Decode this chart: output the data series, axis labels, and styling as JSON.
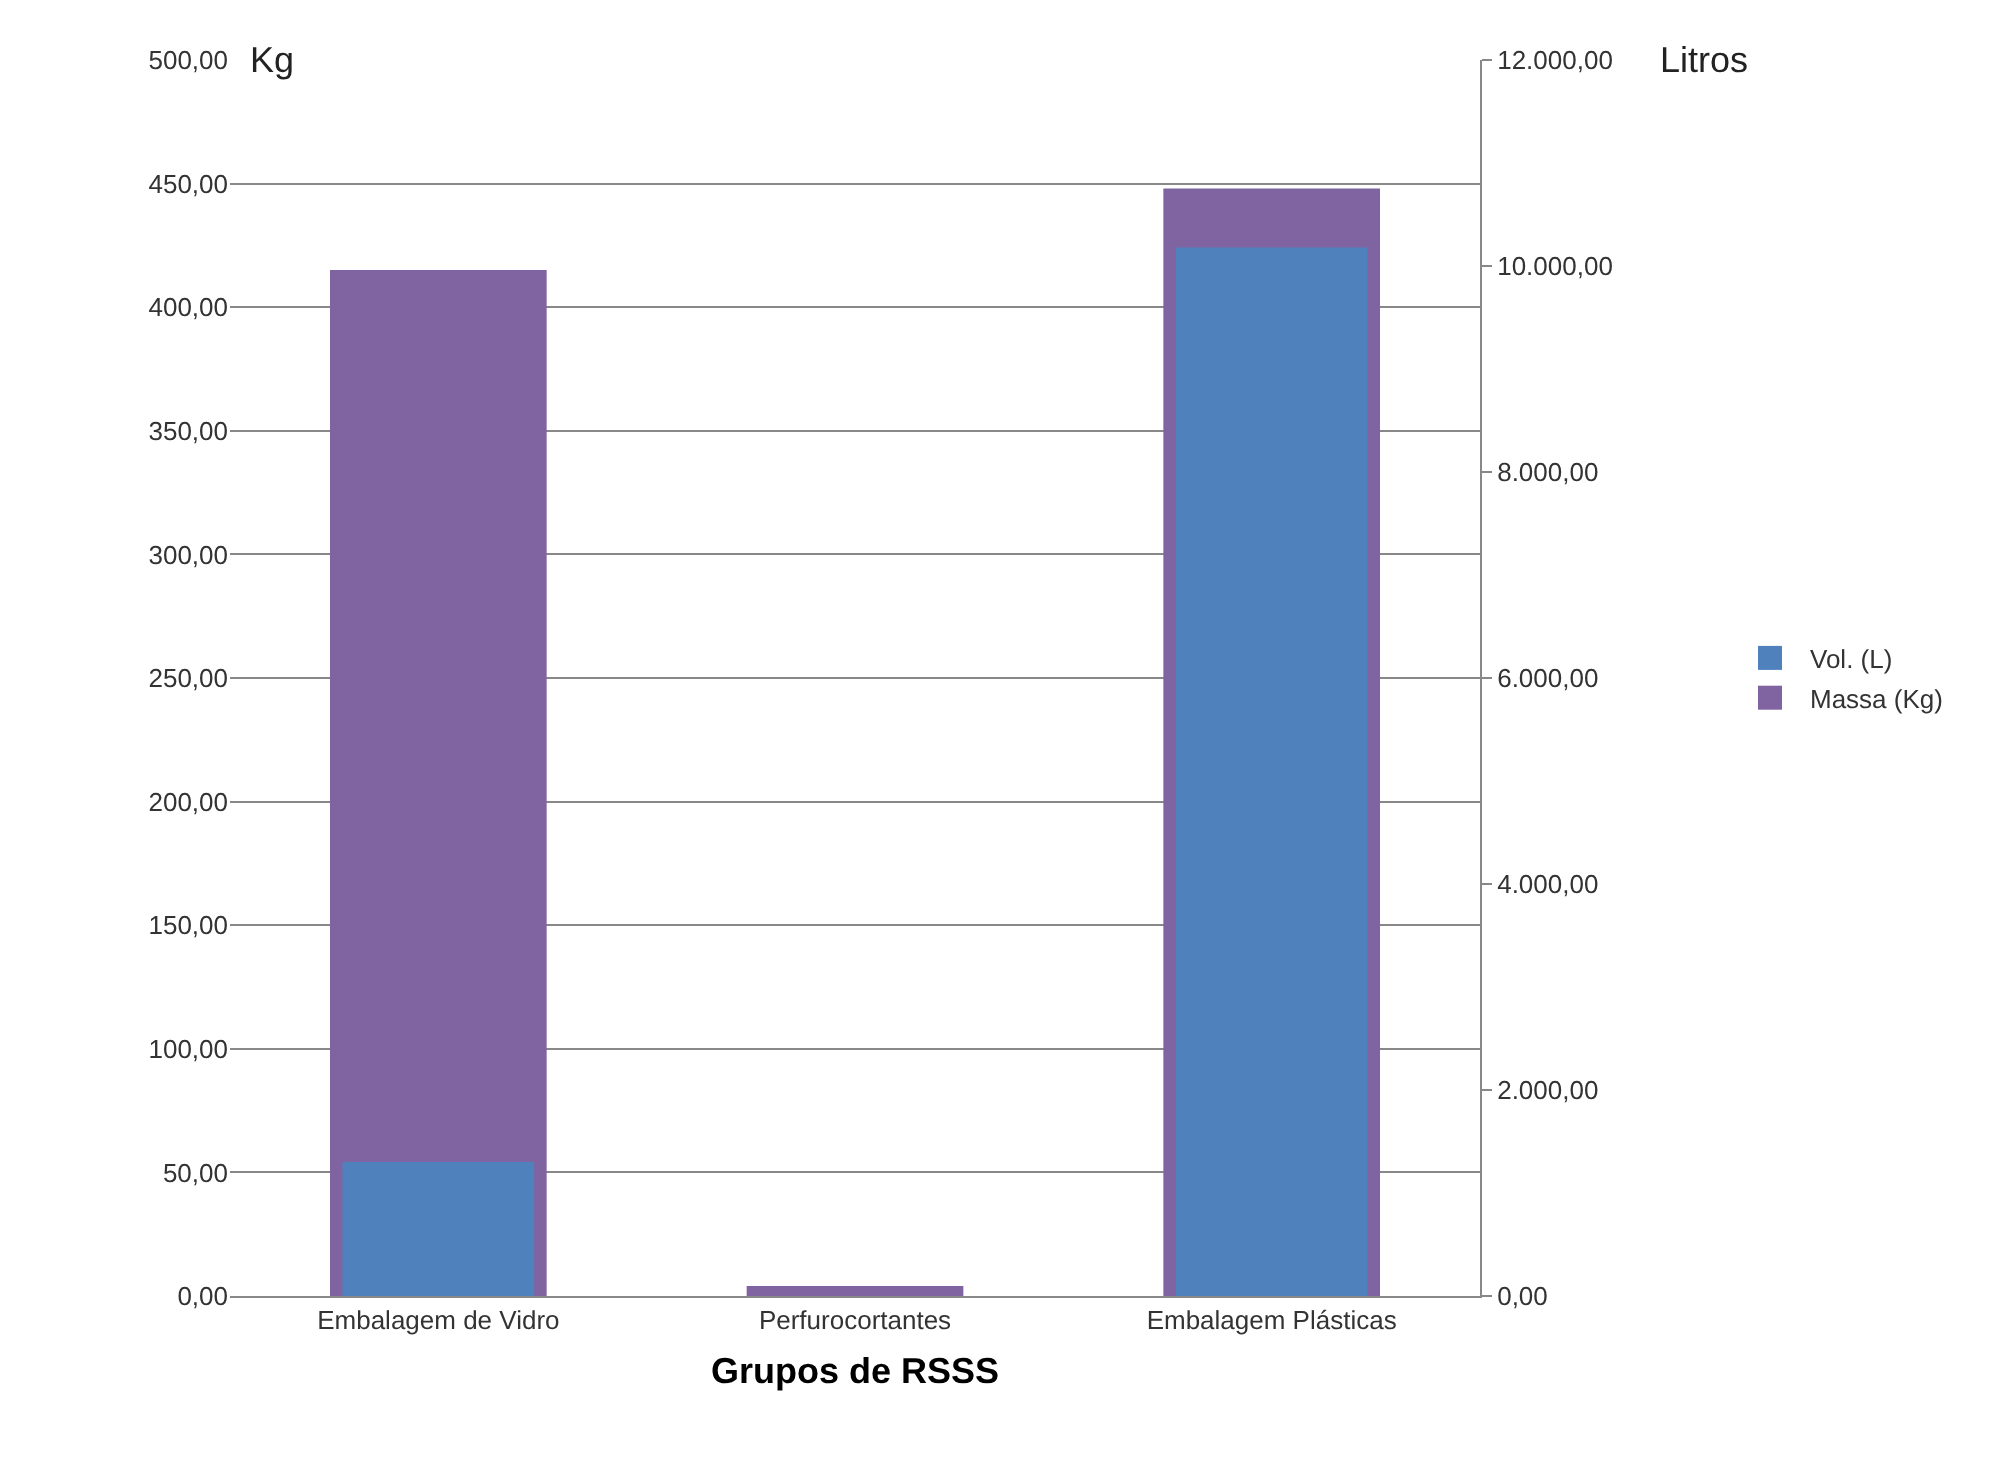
{
  "chart_data": {
    "type": "bar",
    "xlabel": "Grupos de RSSS",
    "ylabel": "Kg",
    "y2label": "Litros",
    "categories": [
      "Embalagem de Vidro",
      "Perfurocortantes",
      "Embalagem Plásticas"
    ],
    "series": [
      {
        "name": "Massa (Kg)",
        "color": "#8064a2",
        "values": [
          415,
          4,
          448
        ]
      },
      {
        "name": "Vol. (L)",
        "color": "#4f81bd",
        "values": [
          1300,
          0,
          10180
        ],
        "axis": "y2"
      }
    ],
    "ylim": [
      0,
      500
    ],
    "yticks": [
      {
        "value": 0,
        "label": "0,00"
      },
      {
        "value": 50,
        "label": "50,00"
      },
      {
        "value": 100,
        "label": "100,00"
      },
      {
        "value": 150,
        "label": "150,00"
      },
      {
        "value": 200,
        "label": "200,00"
      },
      {
        "value": 250,
        "label": "250,00"
      },
      {
        "value": 300,
        "label": "300,00"
      },
      {
        "value": 350,
        "label": "350,00"
      },
      {
        "value": 400,
        "label": "400,00"
      },
      {
        "value": 450,
        "label": "450,00"
      },
      {
        "value": 500,
        "label": "500,00"
      }
    ],
    "y2lim": [
      0,
      12000
    ],
    "y2ticks": [
      {
        "value": 0,
        "label": "0,00"
      },
      {
        "value": 2000,
        "label": "2.000,00"
      },
      {
        "value": 4000,
        "label": "4.000,00"
      },
      {
        "value": 6000,
        "label": "6.000,00"
      },
      {
        "value": 8000,
        "label": "8.000,00"
      },
      {
        "value": 10000,
        "label": "10.000,00"
      },
      {
        "value": 12000,
        "label": "12.000,00"
      }
    ],
    "grid": "y",
    "legend": "right"
  }
}
